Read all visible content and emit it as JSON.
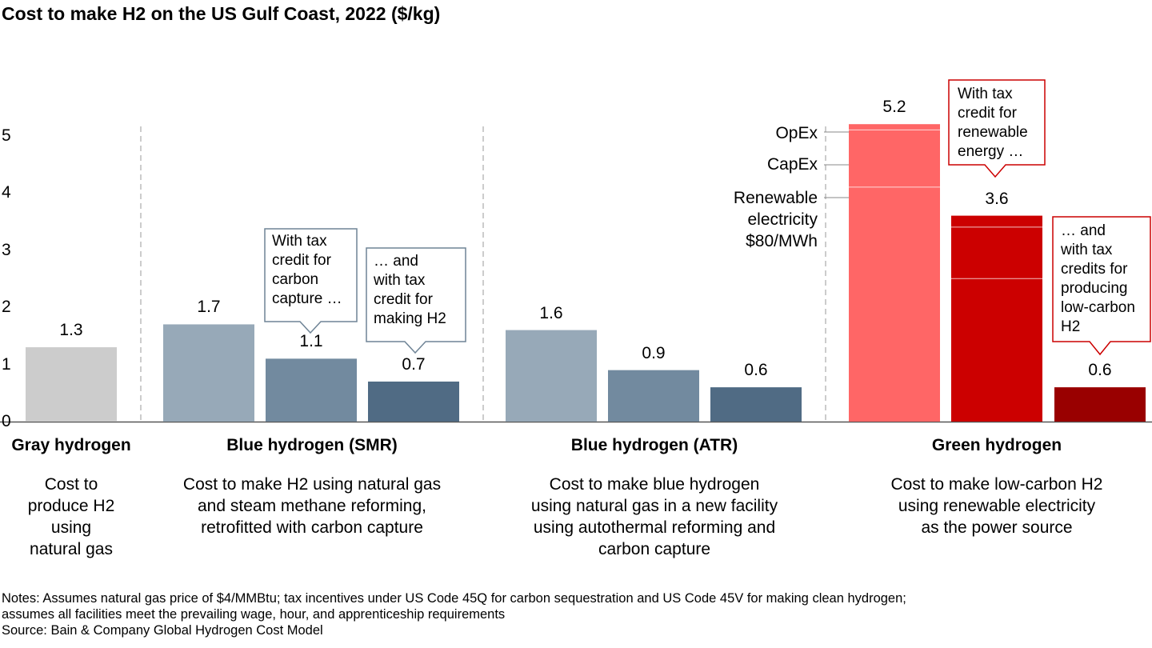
{
  "title": "Cost to make H2 on the US Gulf Coast, 2022 ($/kg)",
  "colors": {
    "gray": "#cccccc",
    "blue_light": "#97a9b8",
    "blue_mid": "#728a9f",
    "blue_dark": "#506b84",
    "green_light": "#ff6666",
    "green_mid": "#cc0000",
    "green_dark": "#990000",
    "callout_blue_border": "#6f8496",
    "callout_red_border": "#cc0000"
  },
  "chart_data": {
    "type": "bar",
    "ylim": [
      0,
      5
    ],
    "y_ticks": [
      "0",
      "1",
      "2",
      "3",
      "4",
      "5"
    ],
    "groups": [
      {
        "title": "Gray hydrogen",
        "description": "Cost to\nproduce H2\nusing\nnatural gas",
        "bars": [
          {
            "value": 1.3,
            "label": "1.3",
            "color": "#cccccc"
          }
        ]
      },
      {
        "title": "Blue hydrogen (SMR)",
        "description": "Cost to make H2 using natural gas\nand steam methane reforming,\nretrofitted with carbon capture",
        "bars": [
          {
            "value": 1.7,
            "label": "1.7",
            "color": "#97a9b8"
          },
          {
            "value": 1.1,
            "label": "1.1",
            "color": "#728a9f"
          },
          {
            "value": 0.7,
            "label": "0.7",
            "color": "#506b84"
          }
        ]
      },
      {
        "title": "Blue hydrogen (ATR)",
        "description": "Cost to make blue hydrogen\nusing natural gas in a new facility\nusing autothermal reforming and\ncarbon capture",
        "bars": [
          {
            "value": 1.6,
            "label": "1.6",
            "color": "#97a9b8"
          },
          {
            "value": 0.9,
            "label": "0.9",
            "color": "#728a9f"
          },
          {
            "value": 0.6,
            "label": "0.6",
            "color": "#506b84"
          }
        ]
      },
      {
        "title": "Green hydrogen",
        "description": "Cost to make low-carbon H2\nusing renewable electricity\nas the power source",
        "bars": [
          {
            "value": 5.2,
            "label": "5.2",
            "color": "#ff6666",
            "segments": [
              4.1,
              1.0,
              0.1
            ]
          },
          {
            "value": 3.6,
            "label": "3.6",
            "color": "#cc0000",
            "segments": [
              2.5,
              0.9,
              0.2
            ]
          },
          {
            "value": 0.6,
            "label": "0.6",
            "color": "#990000"
          }
        ]
      }
    ],
    "segment_labels": [
      "OpEx",
      "CapEx",
      "Renewable\nelectricity\n$80/MWh"
    ]
  },
  "callouts": {
    "smr_tax_credit": "With tax\ncredit for\ncarbon\ncapture …",
    "smr_h2_credit": "… and\nwith tax\ncredit for\nmaking H2",
    "green_tax_credit": "With tax\ncredit for\nrenewable\nenergy …",
    "green_h2_credit": "… and\nwith tax\ncredits for\nproducing\nlow-carbon\nH2"
  },
  "notes": "Notes: Assumes natural gas price of $4/MMBtu; tax incentives under US Code 45Q for carbon sequestration and US Code 45V for making clean hydrogen;\nassumes all facilities meet the prevailing wage, hour, and apprenticeship requirements\nSource: Bain & Company Global Hydrogen Cost Model"
}
